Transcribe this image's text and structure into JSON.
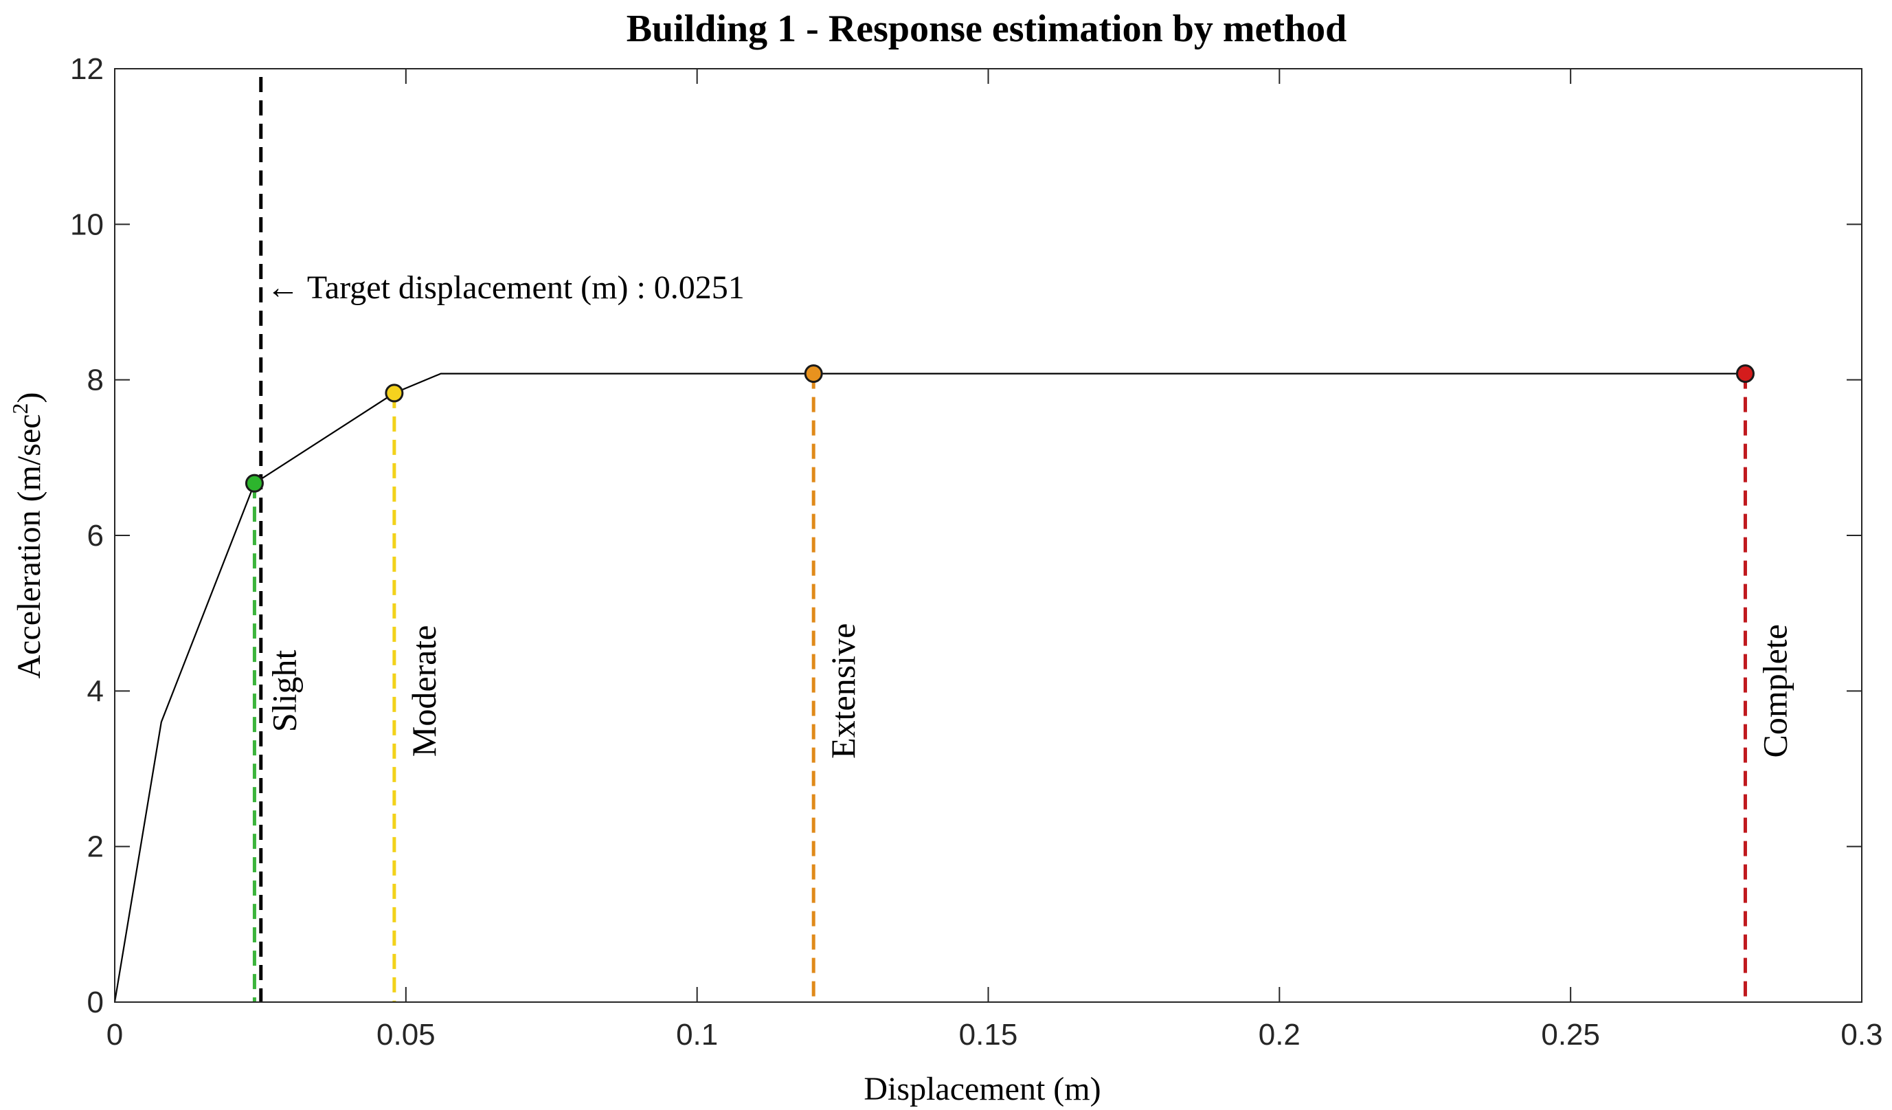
{
  "chart_data": {
    "type": "line",
    "title": "Building 1 - Response estimation by method",
    "xlabel": "Displacement (m)",
    "ylabel_main": "Acceleration (m/sec",
    "ylabel_sup": "2",
    "ylabel_end": ")",
    "xlim": [
      0,
      0.3
    ],
    "ylim": [
      0,
      12
    ],
    "x_ticks": [
      0,
      0.05,
      0.1,
      0.15,
      0.2,
      0.25,
      0.3
    ],
    "x_tick_labels": [
      "0",
      "0.05",
      "0.1",
      "0.15",
      "0.2",
      "0.25",
      "0.3"
    ],
    "y_ticks": [
      0,
      2,
      4,
      6,
      8,
      10,
      12
    ],
    "y_tick_labels": [
      "0",
      "2",
      "4",
      "6",
      "8",
      "10",
      "12"
    ],
    "capacity_curve": {
      "name": "Capacity curve",
      "color": "#000000",
      "x": [
        0,
        0.008,
        0.024,
        0.048,
        0.056,
        0.28
      ],
      "y": [
        0,
        3.6,
        6.67,
        7.83,
        8.08,
        8.08
      ]
    },
    "target_displacement": {
      "value": 0.0251,
      "label": "← Target displacement (m) : 0.0251",
      "color": "#000000"
    },
    "damage_states": [
      {
        "name": "Slight",
        "x": 0.024,
        "y": 6.67,
        "color": "#2db52d",
        "line_color": "#3cb43c"
      },
      {
        "name": "Moderate",
        "x": 0.048,
        "y": 7.83,
        "color": "#f5d21e",
        "line_color": "#f2d21a"
      },
      {
        "name": "Extensive",
        "x": 0.12,
        "y": 8.08,
        "color": "#e8921e",
        "line_color": "#e08a1a"
      },
      {
        "name": "Complete",
        "x": 0.28,
        "y": 8.08,
        "color": "#d41c1c",
        "line_color": "#c0191e"
      }
    ]
  }
}
